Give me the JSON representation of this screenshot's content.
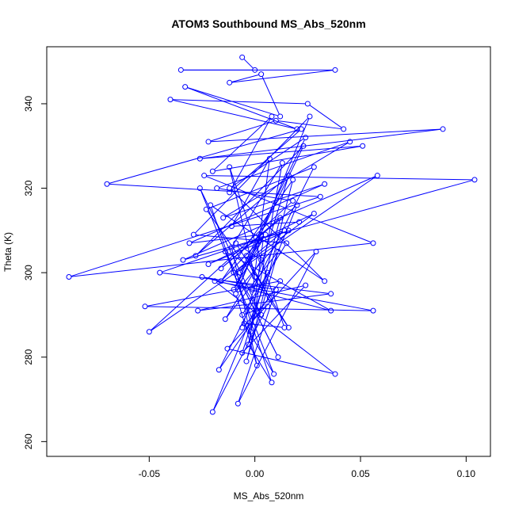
{
  "chart_data": {
    "type": "line",
    "title": "ATOM3 Southbound MS_Abs_520nm",
    "xlabel": "MS_Abs_520nm",
    "ylabel": "Theta (K)",
    "xlim": [
      -0.0985,
      0.1115
    ],
    "ylim": [
      256.5,
      353.5
    ],
    "x_ticks": [
      -0.05,
      0.0,
      0.05,
      0.1
    ],
    "x_tick_labels": [
      "-0.05",
      "0.00",
      "0.05",
      "0.10"
    ],
    "y_ticks": [
      260,
      280,
      300,
      320,
      340
    ],
    "y_tick_labels": [
      "260",
      "280",
      "300",
      "320",
      "340"
    ],
    "grid": false,
    "color": "#0000ff",
    "marker": "open-circle",
    "series": [
      {
        "x": [
          -0.006,
          0.0,
          -0.035,
          0.038,
          -0.012,
          0.003,
          0.012,
          -0.033,
          0.02,
          -0.04,
          0.025,
          0.042,
          0.01,
          -0.022,
          0.089,
          -0.026,
          0.051,
          -0.02,
          0.008,
          -0.012,
          0.022,
          -0.07,
          0.031,
          -0.088,
          0.056,
          -0.024,
          0.104,
          -0.034,
          0.058,
          -0.05,
          0.018,
          -0.018,
          0.045,
          -0.015,
          0.033,
          -0.031,
          0.003,
          -0.008,
          0.016,
          -0.022,
          0.028,
          -0.01,
          0.014,
          -0.045,
          0.036,
          -0.027,
          0.024,
          -0.006,
          0.006,
          -0.017,
          0.012,
          -0.052,
          0.056,
          -0.019,
          0.038,
          -0.013,
          0.029,
          -0.008,
          0.01,
          -0.025,
          0.036,
          -0.014,
          0.011,
          -0.008,
          0.003,
          -0.026,
          0.009,
          -0.005,
          0.014,
          -0.012,
          0.0,
          -0.004,
          0.007,
          -0.006,
          0.016,
          -0.028,
          0.023,
          -0.01,
          0.004,
          -0.002,
          0.012,
          -0.016,
          0.02,
          -0.02,
          0.006,
          -0.006,
          0.015,
          -0.029,
          0.026,
          -0.009,
          0.001,
          -0.011,
          0.013,
          -0.003,
          0.008,
          -0.021,
          0.033,
          -0.012,
          0.024,
          -0.007,
          0.005,
          -0.016,
          0.018,
          -0.004,
          0.011,
          -0.014,
          0.003,
          -0.009,
          0.016,
          -0.023,
          0.028,
          -0.001,
          0.007,
          -0.011,
          0.021
        ],
        "y": [
          351,
          348,
          348,
          348,
          345,
          347,
          337,
          344,
          334,
          341,
          340,
          334,
          336,
          331,
          334,
          327,
          330,
          324,
          337,
          319,
          334,
          321,
          318,
          299,
          307,
          323,
          322,
          303,
          323,
          286,
          317,
          320,
          331,
          313,
          321,
          307,
          309,
          296,
          310,
          302,
          314,
          300,
          310,
          300,
          295,
          291,
          297,
          281,
          300,
          277,
          298,
          292,
          291,
          298,
          276,
          282,
          305,
          269,
          296,
          299,
          291,
          305,
          280,
          299,
          290,
          320,
          276,
          288,
          287,
          325,
          299,
          304,
          294,
          287,
          323,
          304,
          330,
          296,
          308,
          286,
          313,
          301,
          316,
          267,
          292,
          290,
          307,
          309,
          337,
          295,
          278,
          306,
          326,
          283,
          274,
          316,
          298,
          320,
          332,
          300,
          309,
          298,
          322,
          279,
          305,
          289,
          303,
          307,
          287,
          315,
          325,
          296,
          327,
          311,
          312
        ]
      }
    ]
  }
}
